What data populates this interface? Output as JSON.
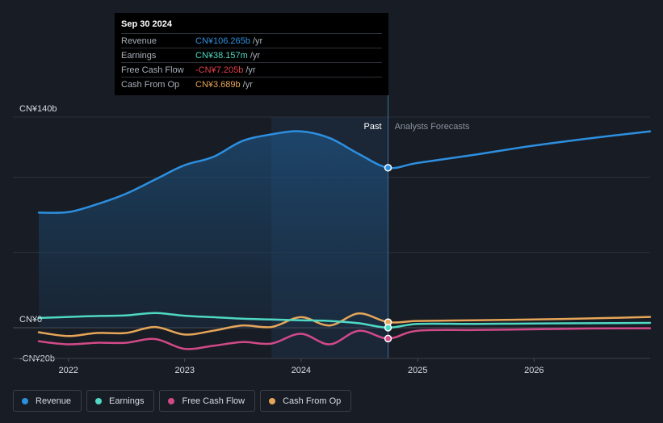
{
  "chart_data": {
    "type": "line",
    "x_start": "2021-09-30",
    "x_end": "2026-12-31",
    "divider_date": "2024-09-30",
    "shade_start": "2023-09-30",
    "ylim": [
      -20,
      140
    ],
    "y_ticks": [
      {
        "value": 140,
        "label": "CN¥140b"
      },
      {
        "value": 0,
        "label": "CN¥0"
      },
      {
        "value": -20,
        "label": "-CN¥20b"
      }
    ],
    "y_gridlines": [
      140,
      100,
      50,
      0
    ],
    "x_ticks": [
      {
        "date": "2022-01-01",
        "label": "2022"
      },
      {
        "date": "2023-01-01",
        "label": "2023"
      },
      {
        "date": "2024-01-01",
        "label": "2024"
      },
      {
        "date": "2025-01-01",
        "label": "2025"
      },
      {
        "date": "2026-01-01",
        "label": "2026"
      }
    ],
    "region_labels": {
      "past": "Past",
      "forecast": "Analysts Forecasts"
    },
    "series": [
      {
        "name": "Revenue",
        "color": "#2d8fe0",
        "fill": true,
        "marker_date": "2024-09-30",
        "points": [
          [
            "2021-09-30",
            76.5
          ],
          [
            "2021-12-31",
            76.8
          ],
          [
            "2022-03-31",
            82.0
          ],
          [
            "2022-06-30",
            89.0
          ],
          [
            "2022-09-30",
            98.5
          ],
          [
            "2022-12-31",
            108.0
          ],
          [
            "2023-03-31",
            113.5
          ],
          [
            "2023-06-30",
            124.0
          ],
          [
            "2023-09-30",
            128.5
          ],
          [
            "2023-12-31",
            130.5
          ],
          [
            "2024-03-31",
            126.0
          ],
          [
            "2024-06-30",
            115.5
          ],
          [
            "2024-09-30",
            106.3
          ],
          [
            "2024-12-31",
            109.5
          ],
          [
            "2025-06-30",
            115.0
          ],
          [
            "2025-12-31",
            121.0
          ],
          [
            "2026-06-30",
            126.0
          ],
          [
            "2026-12-31",
            130.5
          ]
        ]
      },
      {
        "name": "Earnings",
        "color": "#4fd8c4",
        "fill": false,
        "marker_date": "2024-09-30",
        "points": [
          [
            "2021-09-30",
            6.5
          ],
          [
            "2021-12-31",
            7.2
          ],
          [
            "2022-03-31",
            7.8
          ],
          [
            "2022-06-30",
            8.2
          ],
          [
            "2022-09-30",
            9.8
          ],
          [
            "2022-12-31",
            8.0
          ],
          [
            "2023-03-31",
            7.0
          ],
          [
            "2023-06-30",
            6.0
          ],
          [
            "2023-09-30",
            5.5
          ],
          [
            "2023-12-31",
            5.0
          ],
          [
            "2024-03-31",
            4.5
          ],
          [
            "2024-06-30",
            3.0
          ],
          [
            "2024-09-30",
            0.04
          ],
          [
            "2024-12-31",
            2.5
          ],
          [
            "2025-06-30",
            2.5
          ],
          [
            "2025-12-31",
            2.8
          ],
          [
            "2026-06-30",
            3.0
          ],
          [
            "2026-12-31",
            3.2
          ]
        ]
      },
      {
        "name": "Free Cash Flow",
        "color": "#d14a88",
        "fill": false,
        "marker_date": "2024-09-30",
        "points": [
          [
            "2021-09-30",
            -9.0
          ],
          [
            "2021-12-31",
            -11.0
          ],
          [
            "2022-03-31",
            -10.0
          ],
          [
            "2022-06-30",
            -10.0
          ],
          [
            "2022-09-30",
            -7.5
          ],
          [
            "2022-12-31",
            -14.0
          ],
          [
            "2023-03-31",
            -12.0
          ],
          [
            "2023-06-30",
            -9.5
          ],
          [
            "2023-09-30",
            -10.5
          ],
          [
            "2023-12-31",
            -4.0
          ],
          [
            "2024-03-31",
            -11.0
          ],
          [
            "2024-06-30",
            -2.0
          ],
          [
            "2024-09-30",
            -7.2
          ],
          [
            "2024-12-31",
            -2.0
          ],
          [
            "2025-06-30",
            -1.5
          ],
          [
            "2025-12-31",
            -1.0
          ],
          [
            "2026-06-30",
            -0.5
          ],
          [
            "2026-12-31",
            -0.3
          ]
        ]
      },
      {
        "name": "Cash From Op",
        "color": "#e6a659",
        "fill": false,
        "marker_date": "2024-09-30",
        "points": [
          [
            "2021-09-30",
            -3.0
          ],
          [
            "2021-12-31",
            -5.5
          ],
          [
            "2022-03-31",
            -3.5
          ],
          [
            "2022-06-30",
            -3.5
          ],
          [
            "2022-09-30",
            0.5
          ],
          [
            "2022-12-31",
            -4.5
          ],
          [
            "2023-03-31",
            -2.0
          ],
          [
            "2023-06-30",
            1.5
          ],
          [
            "2023-09-30",
            0.5
          ],
          [
            "2023-12-31",
            7.0
          ],
          [
            "2024-03-31",
            1.5
          ],
          [
            "2024-06-30",
            9.5
          ],
          [
            "2024-09-30",
            3.7
          ],
          [
            "2024-12-31",
            4.5
          ],
          [
            "2025-06-30",
            5.0
          ],
          [
            "2025-12-31",
            5.5
          ],
          [
            "2026-06-30",
            6.2
          ],
          [
            "2026-12-31",
            7.2
          ]
        ]
      }
    ]
  },
  "tooltip": {
    "date": "Sep 30 2024",
    "rows": [
      {
        "label": "Revenue",
        "value": "CN¥106.265b",
        "unit": "/yr",
        "color": "#2d8fe0"
      },
      {
        "label": "Earnings",
        "value": "CN¥38.157m",
        "unit": "/yr",
        "color": "#4fd8c4"
      },
      {
        "label": "Free Cash Flow",
        "value": "-CN¥7.205b",
        "unit": "/yr",
        "color": "#e0404a"
      },
      {
        "label": "Cash From Op",
        "value": "CN¥3.689b",
        "unit": "/yr",
        "color": "#e6a659"
      }
    ]
  },
  "legend": [
    {
      "label": "Revenue",
      "color": "#2d8fe0"
    },
    {
      "label": "Earnings",
      "color": "#4fd8c4"
    },
    {
      "label": "Free Cash Flow",
      "color": "#d14a88"
    },
    {
      "label": "Cash From Op",
      "color": "#e6a659"
    }
  ]
}
